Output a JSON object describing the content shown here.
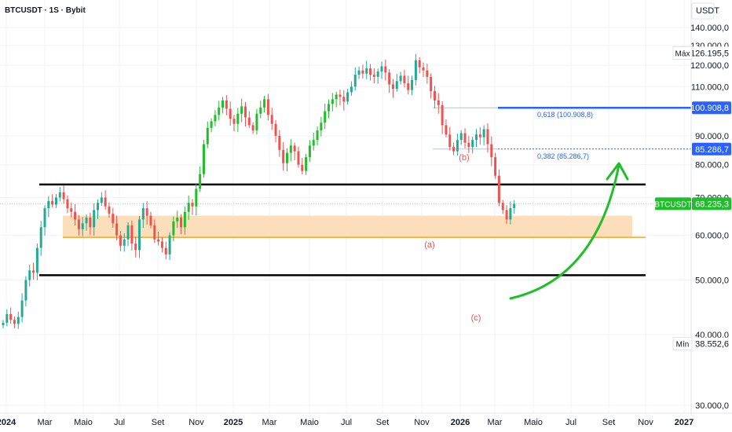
{
  "chart_title": "BTCUSDT · 1S · Bybit",
  "currency_label": "USDT",
  "colors": {
    "up": "#22ab94",
    "up_bright": "#1fbf2a",
    "down": "#ef5350",
    "fib_blue": "#2962ff",
    "zone": "#fcd9ae",
    "zone_line": "#f5a623",
    "black": "#000000",
    "green_arrow": "#1fbf2a",
    "price_tag": "#1fbf2a"
  },
  "price_axis": {
    "ticks": [
      "140.000,0",
      "130.000,0",
      "120.000,0",
      "110.000,0",
      "90.000,0",
      "80.000,0",
      "70.000,0",
      "60.000,0",
      "50.000,0",
      "40.000,0",
      "30.000,0"
    ],
    "tick_values": [
      140000,
      130000,
      120000,
      110000,
      90000,
      80000,
      70000,
      60000,
      50000,
      40000,
      30000
    ]
  },
  "time_axis": {
    "labels": [
      "2024",
      "Mar",
      "Maio",
      "Jul",
      "Set",
      "Nov",
      "2025",
      "Mar",
      "Maio",
      "Jul",
      "Set",
      "Nov",
      "2026",
      "Mar",
      "Maio",
      "Jul",
      "Set",
      "Nov",
      "2027"
    ],
    "bold": [
      "2024",
      "2025",
      "2026",
      "2027"
    ]
  },
  "tags": {
    "max_label": "Máx",
    "max_value": "126.195,5",
    "min_label": "Mín",
    "min_value": "38.552,6",
    "fib618_value": "100.908,8",
    "fib382_value": "85.286,7",
    "symbol": "BTCUSDT",
    "last_value": "68.235,3"
  },
  "annotations": {
    "fib618_text": "0,618 (100.908,8)",
    "fib382_text": "0,382 (85.286,7)",
    "wave_a": "(a)",
    "wave_b": "(b)",
    "wave_c": "(c)"
  },
  "chart_data": {
    "type": "candlestick",
    "title": "BTCUSDT · 1S · Bybit",
    "timeframe": "1S",
    "exchange": "Bybit",
    "ylim": [
      30000,
      145000
    ],
    "y_scale": "log",
    "levels": {
      "fib_0618": 100908.8,
      "fib_0382": 85286.7,
      "max": 126195.5,
      "min": 38552.6,
      "last": 68235.3,
      "range_top": 73800,
      "range_bottom": 51000,
      "zone_top": 65000,
      "zone_bottom": 59500
    },
    "closes": [
      42000,
      43500,
      42500,
      41800,
      43000,
      46000,
      50000,
      52000,
      51500,
      57000,
      62000,
      67000,
      69000,
      68000,
      70000,
      71500,
      69500,
      67000,
      66000,
      64000,
      61500,
      63000,
      64500,
      62000,
      66500,
      68500,
      70000,
      67500,
      65500,
      63000,
      60000,
      57500,
      59000,
      62500,
      58000,
      56500,
      64000,
      67000,
      65000,
      62500,
      59000,
      58500,
      57000,
      55500,
      60000,
      63500,
      64500,
      62000,
      66000,
      68500,
      67500,
      72500,
      77000,
      87000,
      93000,
      95500,
      98000,
      101000,
      104000,
      100500,
      96500,
      94500,
      98500,
      101500,
      97000,
      94000,
      92000,
      98500,
      101000,
      104500,
      98000,
      94500,
      90000,
      85000,
      80500,
      84000,
      86500,
      84500,
      80000,
      78000,
      82500,
      86500,
      88500,
      92000,
      95000,
      99500,
      102500,
      104500,
      106500,
      105500,
      103500,
      107500,
      110000,
      115500,
      117500,
      116000,
      118500,
      115500,
      114500,
      117000,
      119500,
      116500,
      111000,
      109000,
      112500,
      115000,
      111500,
      108500,
      113000,
      122500,
      119000,
      117500,
      114500,
      108000,
      104000,
      102000,
      94000,
      90500,
      86000,
      84500,
      88500,
      91000,
      87500,
      86000,
      88500,
      90500,
      89500,
      92500,
      87000,
      82500,
      76500,
      68500,
      66500,
      64000,
      67000,
      68235
    ]
  }
}
